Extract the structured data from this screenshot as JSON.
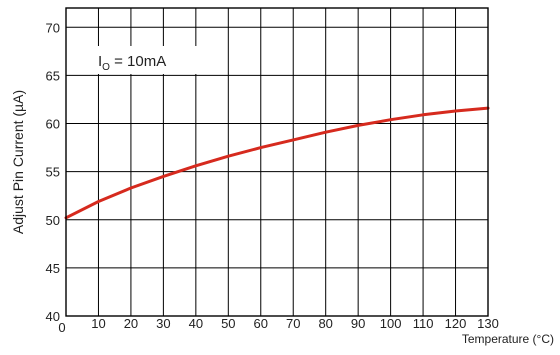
{
  "chart_data": {
    "type": "line",
    "title": "",
    "xlabel": "Temperature (°C)",
    "ylabel": "Adjust Pin Current (µA)",
    "xlim": [
      0,
      130
    ],
    "ylim": [
      40,
      72
    ],
    "x_ticks": [
      0,
      10,
      20,
      30,
      40,
      50,
      60,
      70,
      80,
      90,
      100,
      110,
      120,
      130
    ],
    "x_tick_labels": [
      "0",
      "10",
      "20",
      "30",
      "40",
      "50",
      "60",
      "70",
      "80",
      "90",
      "100",
      "110",
      "120",
      "130"
    ],
    "y_ticks": [
      40,
      45,
      50,
      55,
      60,
      65,
      70
    ],
    "y_tick_labels": [
      "40",
      "45",
      "50",
      "55",
      "60",
      "65",
      "70"
    ],
    "grid": true,
    "annotation": {
      "prefix": "I",
      "subscript": "O",
      "suffix": " = 10mA"
    },
    "series": [
      {
        "color": "#d62a1e",
        "x": [
          0,
          10,
          20,
          30,
          40,
          50,
          60,
          70,
          80,
          90,
          100,
          110,
          120,
          130
        ],
        "y": [
          50.2,
          51.9,
          53.3,
          54.5,
          55.6,
          56.6,
          57.5,
          58.3,
          59.1,
          59.8,
          60.4,
          60.9,
          61.3,
          61.6
        ]
      }
    ]
  }
}
